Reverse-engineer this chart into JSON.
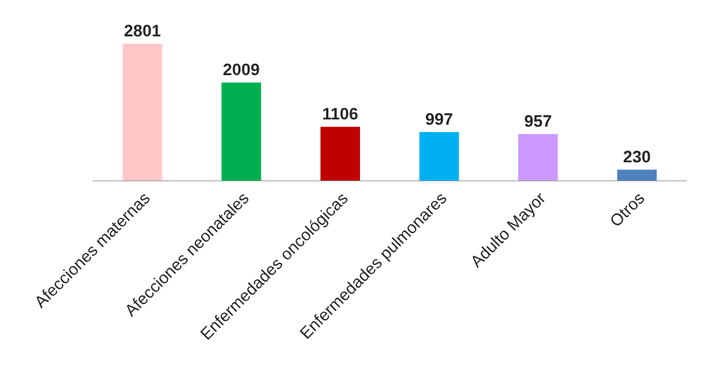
{
  "chart_data": {
    "type": "bar",
    "categories": [
      "Afecciones maternas",
      "Afecciones neonatales",
      "Enfermedades oncológicas",
      "Enfermedades pulmonares",
      "Adulto Mayor",
      "Otros"
    ],
    "values": [
      2801,
      2009,
      1106,
      997,
      957,
      230
    ],
    "colors": [
      "#ffc8c8",
      "#00b050",
      "#c00000",
      "#00b0f0",
      "#cc99ff",
      "#4f81bd"
    ],
    "data_labels": true,
    "grid": false,
    "legend": false
  }
}
